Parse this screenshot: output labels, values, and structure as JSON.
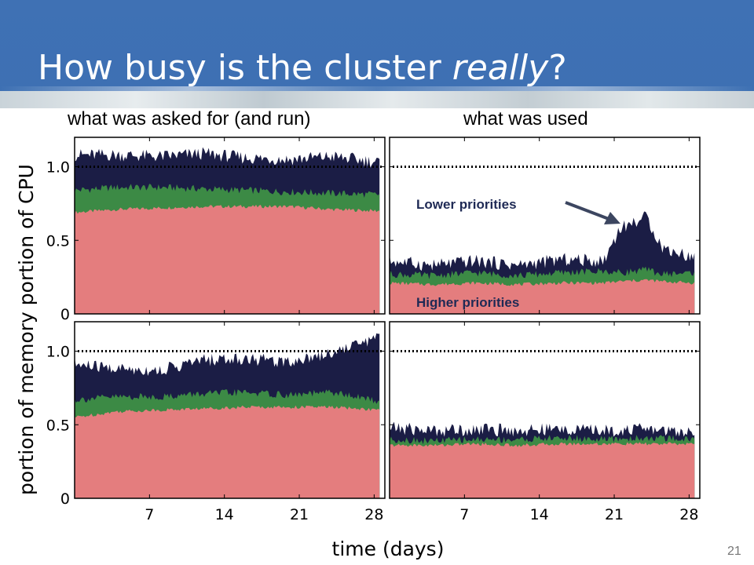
{
  "slide": {
    "title_prefix": "How busy is the cluster ",
    "title_emphasis": "really",
    "title_suffix": "?",
    "number": "21"
  },
  "colors": {
    "header_blue": "#3f71b4",
    "higher_priorities": "#e47d7e",
    "middle_priorities": "#3c8a45",
    "lower_priorities": "#1b1d45",
    "reference_line": "#000000"
  },
  "chart_data": {
    "type": "area",
    "layout": "2x2 small multiples, stacked area",
    "column_titles": [
      "what was asked for (and run)",
      "what was used"
    ],
    "row_labels": [
      "portion of CPU",
      "portion of memory"
    ],
    "xlabel": "time (days)",
    "xlim": [
      0,
      29
    ],
    "xticks": [
      7,
      14,
      21,
      28
    ],
    "ylim": [
      0,
      1.2
    ],
    "yticks": [
      0,
      0.5,
      1.0
    ],
    "ytick_labels": [
      "0",
      "0.5",
      "1.0"
    ],
    "reference_line": {
      "y": 1.0,
      "style": "dotted"
    },
    "annotations": [
      {
        "text": "Lower priorities",
        "panel": "cpu-used",
        "arrow": true
      },
      {
        "text": "Higher priorities",
        "panel": "cpu-used",
        "arrow": false
      }
    ],
    "panels": [
      {
        "id": "cpu-requested",
        "row": "portion of CPU",
        "column": "what was asked for (and run)",
        "x": [
          0,
          4,
          8,
          12,
          16,
          20,
          24,
          28.5
        ],
        "series": [
          {
            "level": "higher",
            "color": "#e47d7e",
            "values": [
              0.69,
              0.71,
              0.72,
              0.73,
              0.73,
              0.73,
              0.71,
              0.7
            ]
          },
          {
            "level": "middle",
            "color": "#3c8a45",
            "values": [
              0.84,
              0.86,
              0.86,
              0.85,
              0.84,
              0.83,
              0.82,
              0.81
            ]
          },
          {
            "level": "lower",
            "color": "#1b1d45",
            "values": [
              1.08,
              1.08,
              1.07,
              1.09,
              1.06,
              1.05,
              1.07,
              1.03
            ]
          }
        ]
      },
      {
        "id": "cpu-used",
        "row": "portion of CPU",
        "column": "what was used",
        "x": [
          0,
          4,
          8,
          12,
          16,
          20,
          21.5,
          24,
          25.5,
          28.5
        ],
        "series": [
          {
            "level": "higher",
            "color": "#e47d7e",
            "values": [
              0.21,
              0.2,
              0.21,
              0.2,
              0.21,
              0.21,
              0.22,
              0.23,
              0.22,
              0.21
            ]
          },
          {
            "level": "middle",
            "color": "#3c8a45",
            "values": [
              0.27,
              0.26,
              0.28,
              0.26,
              0.28,
              0.29,
              0.28,
              0.3,
              0.27,
              0.28
            ]
          },
          {
            "level": "lower",
            "color": "#1b1d45",
            "values": [
              0.36,
              0.33,
              0.36,
              0.33,
              0.37,
              0.36,
              0.58,
              0.66,
              0.45,
              0.38
            ]
          }
        ]
      },
      {
        "id": "memory-requested",
        "row": "portion of memory",
        "column": "what was asked for (and run)",
        "x": [
          0,
          4,
          8,
          12,
          16,
          20,
          24,
          28.5
        ],
        "series": [
          {
            "level": "higher",
            "color": "#e47d7e",
            "values": [
              0.55,
              0.59,
              0.6,
              0.61,
              0.62,
              0.62,
              0.62,
              0.6
            ]
          },
          {
            "level": "middle",
            "color": "#3c8a45",
            "values": [
              0.67,
              0.69,
              0.69,
              0.71,
              0.72,
              0.7,
              0.72,
              0.66
            ]
          },
          {
            "level": "lower",
            "color": "#1b1d45",
            "values": [
              0.91,
              0.88,
              0.87,
              0.94,
              0.95,
              0.93,
              0.99,
              1.1
            ]
          }
        ]
      },
      {
        "id": "memory-used",
        "row": "portion of memory",
        "column": "what was used",
        "x": [
          0,
          4,
          8,
          12,
          16,
          20,
          24,
          28.5
        ],
        "series": [
          {
            "level": "higher",
            "color": "#e47d7e",
            "values": [
              0.36,
              0.36,
              0.37,
              0.36,
              0.37,
              0.37,
              0.37,
              0.37
            ]
          },
          {
            "level": "middle",
            "color": "#3c8a45",
            "values": [
              0.4,
              0.39,
              0.4,
              0.4,
              0.41,
              0.4,
              0.41,
              0.4
            ]
          },
          {
            "level": "lower",
            "color": "#1b1d45",
            "values": [
              0.48,
              0.46,
              0.47,
              0.46,
              0.47,
              0.46,
              0.47,
              0.45
            ]
          }
        ]
      }
    ]
  }
}
